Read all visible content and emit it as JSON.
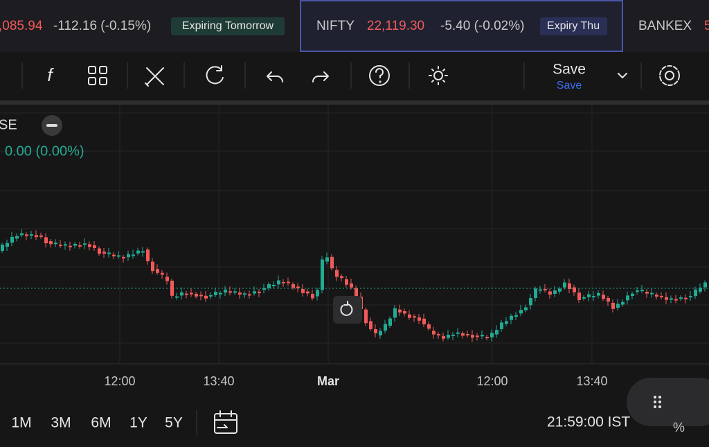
{
  "ticker": {
    "items": [
      {
        "price": ",085.94",
        "change": "-112.16 (-0.15%)",
        "badge": "Expiring Tomorrow"
      },
      {
        "name": "NIFTY",
        "price": "22,119.30",
        "change": "-5.40 (-0.02%)",
        "badge": "Expiry Thu"
      },
      {
        "name": "BANKEX",
        "price": "5"
      }
    ]
  },
  "toolbar": {
    "save_label": "Save",
    "save_sub": "Save"
  },
  "legend": {
    "symbol": "SE",
    "change": "0.00 (0.00%)"
  },
  "x_axis": {
    "labels": [
      "12:00",
      "13:40",
      "Mar",
      "12:00",
      "13:40"
    ]
  },
  "footer": {
    "ranges": [
      "1M",
      "3M",
      "6M",
      "1Y",
      "5Y"
    ],
    "clock": "21:59:00 IST",
    "percent": "%"
  }
}
